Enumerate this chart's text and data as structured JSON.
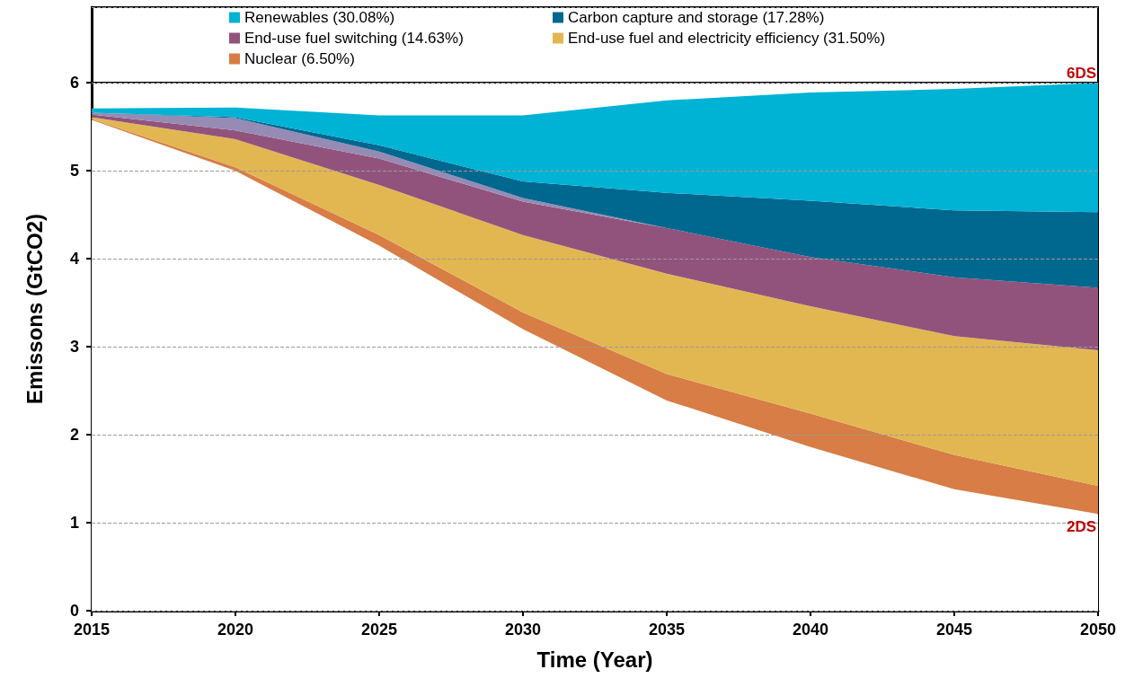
{
  "chart_data": {
    "type": "area",
    "stacked": true,
    "xlabel": "Time (Year)",
    "ylabel": "Emissons (GtCO2)",
    "x": [
      2015,
      2020,
      2025,
      2030,
      2035,
      2040,
      2045,
      2050
    ],
    "xlim": [
      2015,
      2050
    ],
    "xticks": [
      2015,
      2020,
      2025,
      2030,
      2035,
      2040,
      2045,
      2050
    ],
    "ylim": [
      0,
      6.86
    ],
    "yticks": [
      0,
      1,
      2,
      3,
      4,
      5,
      6
    ],
    "grid": "y",
    "legend": "top",
    "series": [
      {
        "color": "#ffffff",
        "values": [
          5.58,
          5.0,
          4.15,
          3.2,
          2.39,
          1.86,
          1.38,
          1.1
        ]
      },
      {
        "name": "Nuclear (6.50%)",
        "color": "#d77d45",
        "values": [
          0.01,
          0.04,
          0.12,
          0.19,
          0.3,
          0.38,
          0.39,
          0.32
        ]
      },
      {
        "name": "End-use fuel and electricity efficiency (31.50%)",
        "color": "#e2b752",
        "values": [
          0.02,
          0.32,
          0.57,
          0.88,
          1.14,
          1.22,
          1.35,
          1.54
        ]
      },
      {
        "name": "End-use fuel switching (14.63%)",
        "color": "#91537c",
        "values": [
          0.03,
          0.1,
          0.3,
          0.38,
          0.52,
          0.56,
          0.67,
          0.71
        ]
      },
      {
        "color": "#968bb4",
        "values": [
          0.02,
          0.14,
          0.08,
          0.04,
          0,
          null,
          null,
          null
        ]
      },
      {
        "name": "Carbon capture and storage (17.28%)",
        "color": "#00678f",
        "values": [
          0,
          0.01,
          0.07,
          0.19,
          0.4,
          0.64,
          0.76,
          0.86
        ]
      },
      {
        "name": "Renewables (30.08%)",
        "color": "#00b2d4",
        "values": [
          0.05,
          0.11,
          0.34,
          0.75,
          1.05,
          1.23,
          1.38,
          1.47
        ]
      }
    ],
    "ref_lines": [
      {
        "axis": "y",
        "value": 6,
        "label": "6DS",
        "color": "#000000"
      }
    ],
    "annotations": [
      {
        "text": "2DS",
        "x": 2050,
        "y": 1.1
      }
    ]
  }
}
